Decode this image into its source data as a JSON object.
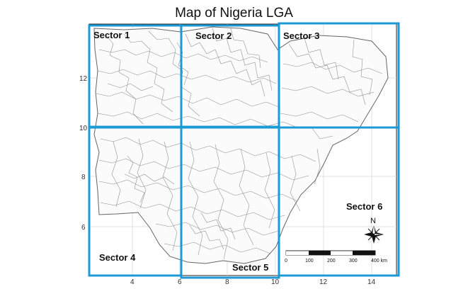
{
  "title": "Map of Nigeria LGA",
  "y_ticks": [
    "12",
    "10",
    "8",
    "6"
  ],
  "x_ticks": [
    "4",
    "6",
    "8",
    "10",
    "12",
    "14"
  ],
  "sectors": [
    "Sector 1",
    "Sector 2",
    "Sector 3",
    "Sector 4",
    "Sector 5",
    "Sector 6"
  ],
  "scale_bar": {
    "labels": [
      "0",
      "100",
      "200",
      "300",
      "400 km"
    ]
  },
  "north_arrow_label": "N",
  "colors": {
    "sector_border": "#1b9ad6",
    "lga_lines": "#888888",
    "grid": "#d9d9d9",
    "frame": "#222222"
  }
}
